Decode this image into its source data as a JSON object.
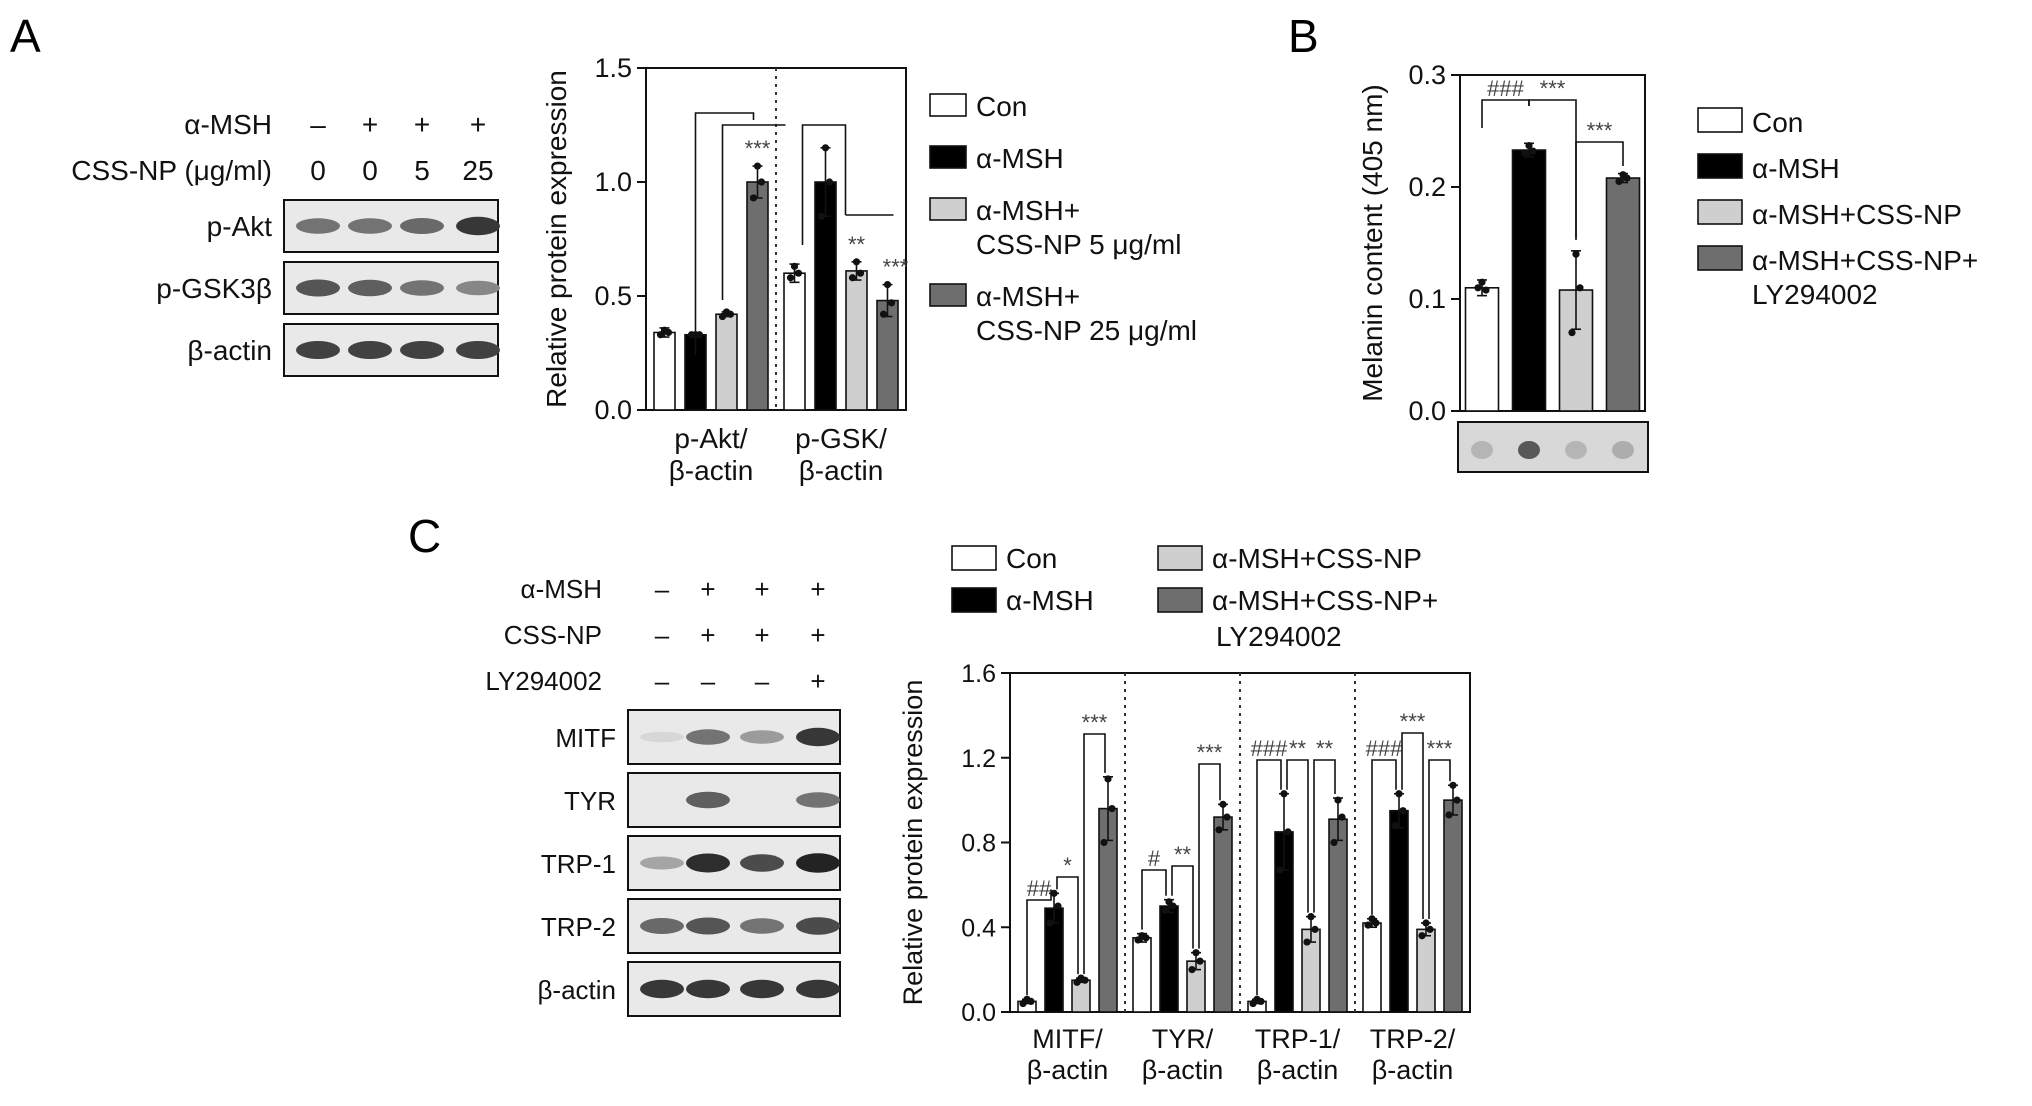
{
  "colors": {
    "con": "#ffffff",
    "msh": "#000000",
    "light": "#cfcfcf",
    "dark": "#6e6e6e",
    "axis": "#111111"
  },
  "panel_a": {
    "letter": "A",
    "blot": {
      "rows": [
        {
          "label": "α-MSH",
          "values": [
            "–",
            "+",
            "+",
            "+"
          ]
        },
        {
          "label": "CSS-NP (μg/ml)",
          "values": [
            "0",
            "0",
            "5",
            "25"
          ]
        }
      ],
      "bands": [
        "p-Akt",
        "p-GSK3β",
        "β-actin"
      ],
      "intensities": [
        [
          0.55,
          0.55,
          0.6,
          0.85
        ],
        [
          0.7,
          0.65,
          0.55,
          0.45
        ],
        [
          0.8,
          0.8,
          0.8,
          0.8
        ]
      ]
    },
    "legend": [
      "Con",
      "α-MSH",
      "α-MSH+\nCSS-NP 5 μg/ml",
      "α-MSH+\nCSS-NP 25 μg/ml"
    ]
  },
  "panel_b": {
    "letter": "B",
    "legend": [
      "Con",
      "α-MSH",
      "α-MSH+CSS-NP",
      "α-MSH+CSS-NP+\nLY294002"
    ],
    "strip_intensities": [
      0.2,
      0.75,
      0.2,
      0.25
    ]
  },
  "panel_c": {
    "letter": "C",
    "blot": {
      "rows": [
        {
          "label": "α-MSH",
          "values": [
            "–",
            "+",
            "+",
            "+"
          ]
        },
        {
          "label": "CSS-NP",
          "values": [
            "–",
            "+",
            "+",
            "+"
          ]
        },
        {
          "label": "LY294002",
          "values": [
            "–",
            "–",
            "–",
            "+"
          ]
        }
      ],
      "bands": [
        "MITF",
        "TYR",
        "TRP-1",
        "TRP-2",
        "β-actin"
      ],
      "intensities": [
        [
          0.05,
          0.55,
          0.35,
          0.85
        ],
        [
          0.0,
          0.65,
          0.0,
          0.55
        ],
        [
          0.3,
          0.9,
          0.75,
          0.95
        ],
        [
          0.6,
          0.7,
          0.55,
          0.75
        ],
        [
          0.85,
          0.85,
          0.85,
          0.85
        ]
      ]
    },
    "legend": [
      "Con",
      "α-MSH",
      "α-MSH+CSS-NP",
      "α-MSH+CSS-NP+\nLY294002"
    ]
  },
  "chart_data": [
    {
      "type": "bar",
      "panel": "A",
      "ylabel": "Relative protein expression",
      "ylim": [
        0,
        1.5
      ],
      "yticks": [
        "0.0",
        "0.5",
        "1.0",
        "1.5"
      ],
      "categories": [
        "p-Akt/\nβ-actin",
        "p-GSK/\nβ-actin"
      ],
      "series": [
        {
          "name": "Con",
          "values": [
            0.34,
            0.6
          ],
          "err": [
            0.02,
            0.04
          ],
          "points": [
            [
              0.33,
              0.35,
              0.34
            ],
            [
              0.58,
              0.63,
              0.6
            ]
          ]
        },
        {
          "name": "α-MSH",
          "values": [
            0.33,
            1.0
          ],
          "err": [
            0.01,
            0.15
          ],
          "points": [
            [
              0.33,
              0.33,
              0.33
            ],
            [
              0.85,
              1.15,
              1.0
            ]
          ]
        },
        {
          "name": "α-MSH+\nCSS-NP 5 μg/ml",
          "values": [
            0.42,
            0.61
          ],
          "err": [
            0.01,
            0.04
          ],
          "points": [
            [
              0.41,
              0.43,
              0.42
            ],
            [
              0.58,
              0.65,
              0.6
            ]
          ]
        },
        {
          "name": "α-MSH+\nCSS-NP 25 μg/ml",
          "values": [
            1.0,
            0.48
          ],
          "err": [
            0.07,
            0.07
          ],
          "points": [
            [
              0.93,
              1.07,
              1.0
            ],
            [
              0.42,
              0.55,
              0.47
            ]
          ]
        }
      ],
      "annotations": [
        {
          "text": "***",
          "group": 0,
          "bar": 3
        },
        {
          "text": "**",
          "group": 1,
          "bar": 2
        },
        {
          "text": "***",
          "group": 1,
          "bar": 3
        }
      ]
    },
    {
      "type": "bar",
      "panel": "B",
      "ylabel": "Melanin content (405 nm)",
      "ylim": [
        0,
        0.3
      ],
      "yticks": [
        "0.0",
        "0.1",
        "0.2",
        "0.3"
      ],
      "categories": [
        ""
      ],
      "series": [
        {
          "name": "Con",
          "values": [
            0.11
          ],
          "err": [
            0.007
          ],
          "points": [
            [
              0.11,
              0.115,
              0.108
            ]
          ]
        },
        {
          "name": "α-MSH",
          "values": [
            0.233
          ],
          "err": [
            0.006
          ],
          "points": [
            [
              0.23,
              0.237,
              0.232
            ]
          ]
        },
        {
          "name": "α-MSH+CSS-NP",
          "values": [
            0.108
          ],
          "err": [
            0.035
          ],
          "points": [
            [
              0.07,
              0.14,
              0.11
            ]
          ]
        },
        {
          "name": "α-MSH+CSS-NP+\nLY294002",
          "values": [
            0.208
          ],
          "err": [
            0.004
          ],
          "points": [
            [
              0.205,
              0.211,
              0.208
            ]
          ]
        }
      ],
      "annotations": [
        {
          "text": "###",
          "from": 0,
          "to": 1
        },
        {
          "text": "***",
          "from": 1,
          "to": 2
        },
        {
          "text": "***",
          "from": 2,
          "to": 3
        }
      ]
    },
    {
      "type": "bar",
      "panel": "C",
      "ylabel": "Relative protein expression",
      "ylim": [
        0,
        1.6
      ],
      "yticks": [
        "0.0",
        "0.4",
        "0.8",
        "1.2",
        "1.6"
      ],
      "categories": [
        "MITF/\nβ-actin",
        "TYR/\nβ-actin",
        "TRP-1/\nβ-actin",
        "TRP-2/\nβ-actin"
      ],
      "series": [
        {
          "name": "Con",
          "values": [
            0.05,
            0.35,
            0.05,
            0.42
          ],
          "err": [
            0.01,
            0.02,
            0.01,
            0.02
          ],
          "points": [
            [
              0.04,
              0.06,
              0.05
            ],
            [
              0.34,
              0.36,
              0.35
            ],
            [
              0.04,
              0.06,
              0.05
            ],
            [
              0.41,
              0.44,
              0.42
            ]
          ]
        },
        {
          "name": "α-MSH",
          "values": [
            0.49,
            0.5,
            0.85,
            0.95
          ],
          "err": [
            0.07,
            0.03,
            0.18,
            0.08
          ],
          "points": [
            [
              0.42,
              0.56,
              0.5
            ],
            [
              0.48,
              0.52,
              0.5
            ],
            [
              0.67,
              1.03,
              0.85
            ],
            [
              0.88,
              1.03,
              0.95
            ]
          ]
        },
        {
          "name": "α-MSH+CSS-NP",
          "values": [
            0.15,
            0.24,
            0.39,
            0.39
          ],
          "err": [
            0.01,
            0.04,
            0.06,
            0.03
          ],
          "points": [
            [
              0.14,
              0.16,
              0.15
            ],
            [
              0.2,
              0.28,
              0.24
            ],
            [
              0.33,
              0.45,
              0.39
            ],
            [
              0.36,
              0.42,
              0.39
            ]
          ]
        },
        {
          "name": "α-MSH+CSS-NP+\nLY294002",
          "values": [
            0.96,
            0.92,
            0.91,
            1.0
          ],
          "err": [
            0.15,
            0.06,
            0.1,
            0.07
          ],
          "points": [
            [
              0.8,
              1.1,
              0.96
            ],
            [
              0.86,
              0.98,
              0.92
            ],
            [
              0.8,
              1.0,
              0.92
            ],
            [
              0.93,
              1.07,
              1.0
            ]
          ]
        }
      ],
      "annotations": [
        {
          "text": "##",
          "group": 0,
          "from": 0,
          "to": 1
        },
        {
          "text": "*",
          "group": 0,
          "from": 1,
          "to": 2
        },
        {
          "text": "***",
          "group": 0,
          "from": 2,
          "to": 3
        },
        {
          "text": "#",
          "group": 1,
          "from": 0,
          "to": 1
        },
        {
          "text": "**",
          "group": 1,
          "from": 1,
          "to": 2
        },
        {
          "text": "***",
          "group": 1,
          "from": 2,
          "to": 3
        },
        {
          "text": "###",
          "group": 2,
          "from": 0,
          "to": 1
        },
        {
          "text": "**",
          "group": 2,
          "from": 1,
          "to": 2
        },
        {
          "text": "**",
          "group": 2,
          "from": 2,
          "to": 3
        },
        {
          "text": "###",
          "group": 3,
          "from": 0,
          "to": 1
        },
        {
          "text": "***",
          "group": 3,
          "from": 1,
          "to": 2
        },
        {
          "text": "***",
          "group": 3,
          "from": 2,
          "to": 3
        }
      ]
    }
  ]
}
